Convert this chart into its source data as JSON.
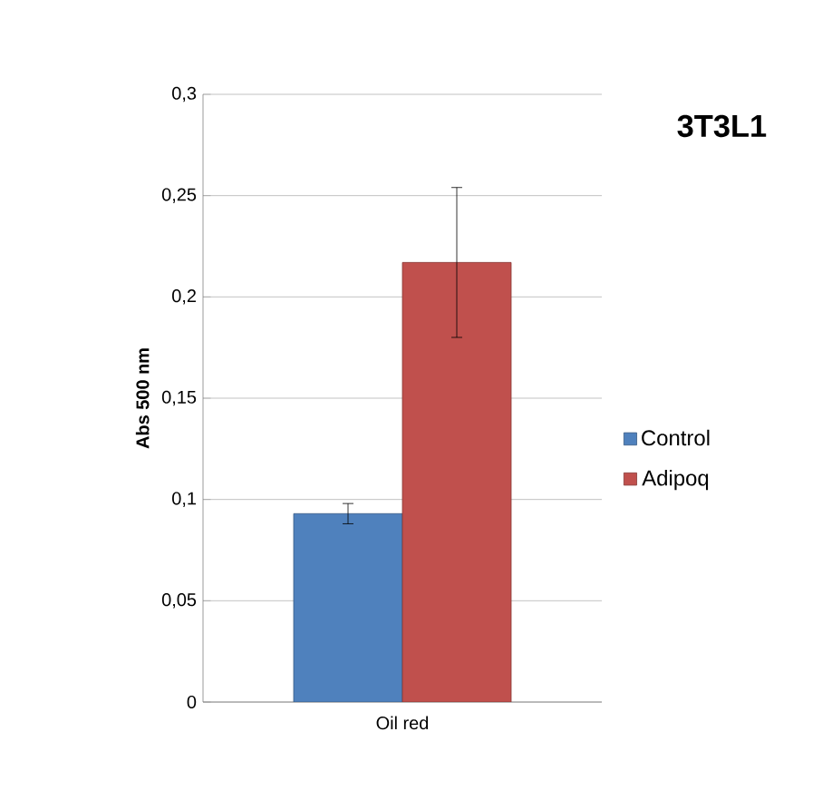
{
  "chart_data": {
    "type": "bar",
    "title": "3T3L1",
    "ylabel": "Abs 500 nm",
    "categories": [
      "Oil red"
    ],
    "series": [
      {
        "name": "Control",
        "color": "#4f81bd",
        "values": [
          0.093
        ],
        "errors": [
          0.005
        ]
      },
      {
        "name": "Adipoq",
        "color": "#c0504d",
        "values": [
          0.217
        ],
        "errors": [
          0.037
        ]
      }
    ],
    "ylim": [
      0,
      0.3
    ],
    "yticks": [
      {
        "value": 0,
        "label": "0"
      },
      {
        "value": 0.05,
        "label": "0,05"
      },
      {
        "value": 0.1,
        "label": "0,1"
      },
      {
        "value": 0.15,
        "label": "0,15"
      },
      {
        "value": 0.2,
        "label": "0,2"
      },
      {
        "value": 0.25,
        "label": "0,25"
      },
      {
        "value": 0.3,
        "label": "0,3"
      }
    ],
    "grid": "y",
    "legend": "right"
  }
}
